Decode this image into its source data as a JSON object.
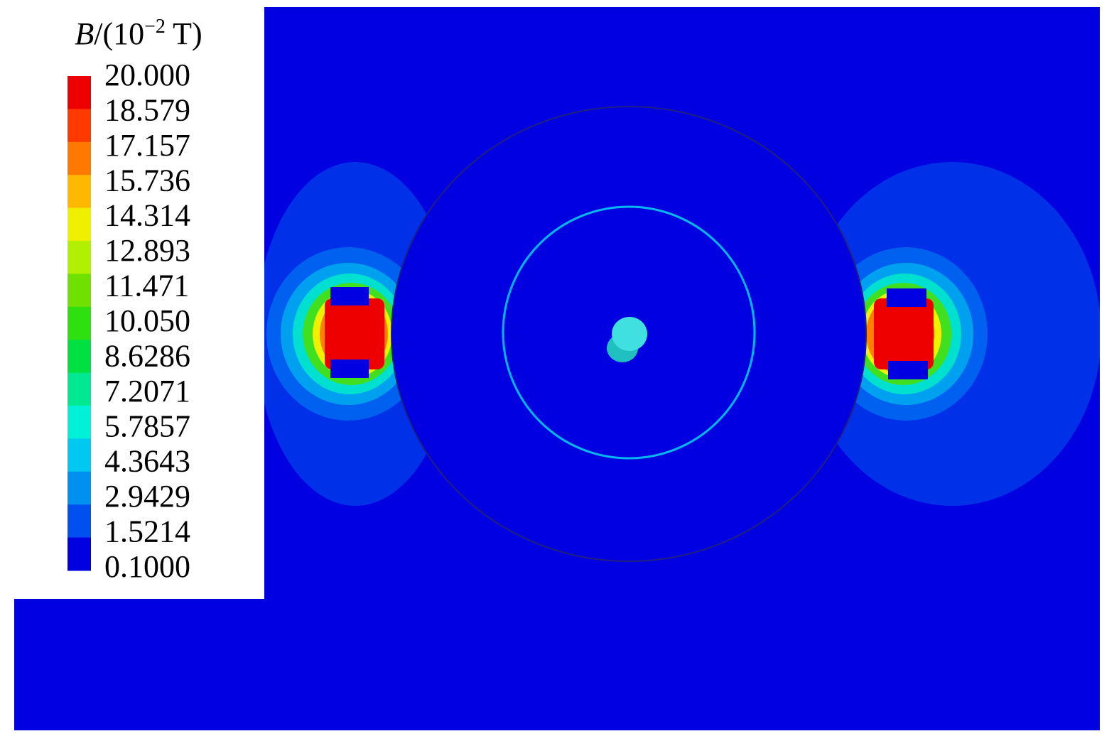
{
  "legend": {
    "title": {
      "symbol": "B",
      "prefix": "/(10",
      "exponent": "−2",
      "suffix": " T)"
    },
    "entries": [
      {
        "label": "20.000",
        "color": "#ee0000"
      },
      {
        "label": "18.579",
        "color": "#ff3a00"
      },
      {
        "label": "17.157",
        "color": "#ff7800"
      },
      {
        "label": "15.736",
        "color": "#ffb800"
      },
      {
        "label": "14.314",
        "color": "#eef000"
      },
      {
        "label": "12.893",
        "color": "#b0f000"
      },
      {
        "label": "11.471",
        "color": "#70e000"
      },
      {
        "label": "10.050",
        "color": "#2ee010"
      },
      {
        "label": "8.6286",
        "color": "#00e040"
      },
      {
        "label": "7.2071",
        "color": "#00e890"
      },
      {
        "label": "5.7857",
        "color": "#00f0d8"
      },
      {
        "label": "4.3643",
        "color": "#00c8f0"
      },
      {
        "label": "2.9429",
        "color": "#0090f0"
      },
      {
        "label": "1.5214",
        "color": "#0050f0"
      },
      {
        "label": "0.1000",
        "color": "#0000e0"
      }
    ]
  }
}
